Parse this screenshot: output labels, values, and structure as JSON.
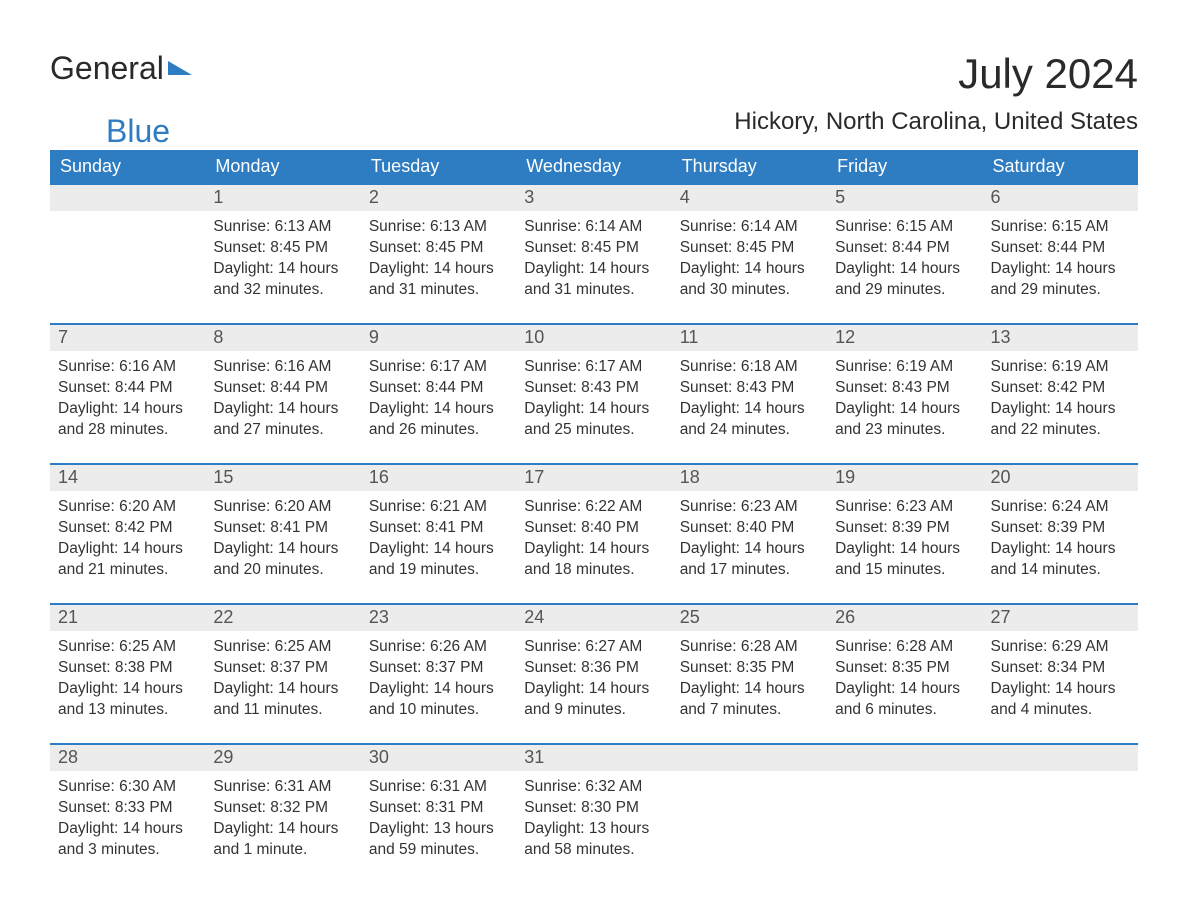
{
  "brand": {
    "general": "General",
    "blue": "Blue"
  },
  "header": {
    "month_title": "July 2024",
    "location": "Hickory, North Carolina, United States"
  },
  "colors": {
    "header_bg": "#2e7cc1",
    "header_text": "#ffffff",
    "daynum_bg": "#ececec",
    "row_top_border": "#2e7cc1",
    "body_text": "#333333",
    "logo_blue": "#2e7cc1",
    "logo_dark": "#2a2a2a",
    "page_bg": "#ffffff"
  },
  "typography": {
    "month_title_fontsize": 42,
    "location_fontsize": 24,
    "th_fontsize": 18,
    "daynum_fontsize": 18,
    "cell_fontsize": 15.5
  },
  "calendar": {
    "columns": [
      "Sunday",
      "Monday",
      "Tuesday",
      "Wednesday",
      "Thursday",
      "Friday",
      "Saturday"
    ],
    "weeks": [
      [
        null,
        {
          "n": "1",
          "sunrise": "6:13 AM",
          "sunset": "8:45 PM",
          "daylight": "14 hours and 32 minutes."
        },
        {
          "n": "2",
          "sunrise": "6:13 AM",
          "sunset": "8:45 PM",
          "daylight": "14 hours and 31 minutes."
        },
        {
          "n": "3",
          "sunrise": "6:14 AM",
          "sunset": "8:45 PM",
          "daylight": "14 hours and 31 minutes."
        },
        {
          "n": "4",
          "sunrise": "6:14 AM",
          "sunset": "8:45 PM",
          "daylight": "14 hours and 30 minutes."
        },
        {
          "n": "5",
          "sunrise": "6:15 AM",
          "sunset": "8:44 PM",
          "daylight": "14 hours and 29 minutes."
        },
        {
          "n": "6",
          "sunrise": "6:15 AM",
          "sunset": "8:44 PM",
          "daylight": "14 hours and 29 minutes."
        }
      ],
      [
        {
          "n": "7",
          "sunrise": "6:16 AM",
          "sunset": "8:44 PM",
          "daylight": "14 hours and 28 minutes."
        },
        {
          "n": "8",
          "sunrise": "6:16 AM",
          "sunset": "8:44 PM",
          "daylight": "14 hours and 27 minutes."
        },
        {
          "n": "9",
          "sunrise": "6:17 AM",
          "sunset": "8:44 PM",
          "daylight": "14 hours and 26 minutes."
        },
        {
          "n": "10",
          "sunrise": "6:17 AM",
          "sunset": "8:43 PM",
          "daylight": "14 hours and 25 minutes."
        },
        {
          "n": "11",
          "sunrise": "6:18 AM",
          "sunset": "8:43 PM",
          "daylight": "14 hours and 24 minutes."
        },
        {
          "n": "12",
          "sunrise": "6:19 AM",
          "sunset": "8:43 PM",
          "daylight": "14 hours and 23 minutes."
        },
        {
          "n": "13",
          "sunrise": "6:19 AM",
          "sunset": "8:42 PM",
          "daylight": "14 hours and 22 minutes."
        }
      ],
      [
        {
          "n": "14",
          "sunrise": "6:20 AM",
          "sunset": "8:42 PM",
          "daylight": "14 hours and 21 minutes."
        },
        {
          "n": "15",
          "sunrise": "6:20 AM",
          "sunset": "8:41 PM",
          "daylight": "14 hours and 20 minutes."
        },
        {
          "n": "16",
          "sunrise": "6:21 AM",
          "sunset": "8:41 PM",
          "daylight": "14 hours and 19 minutes."
        },
        {
          "n": "17",
          "sunrise": "6:22 AM",
          "sunset": "8:40 PM",
          "daylight": "14 hours and 18 minutes."
        },
        {
          "n": "18",
          "sunrise": "6:23 AM",
          "sunset": "8:40 PM",
          "daylight": "14 hours and 17 minutes."
        },
        {
          "n": "19",
          "sunrise": "6:23 AM",
          "sunset": "8:39 PM",
          "daylight": "14 hours and 15 minutes."
        },
        {
          "n": "20",
          "sunrise": "6:24 AM",
          "sunset": "8:39 PM",
          "daylight": "14 hours and 14 minutes."
        }
      ],
      [
        {
          "n": "21",
          "sunrise": "6:25 AM",
          "sunset": "8:38 PM",
          "daylight": "14 hours and 13 minutes."
        },
        {
          "n": "22",
          "sunrise": "6:25 AM",
          "sunset": "8:37 PM",
          "daylight": "14 hours and 11 minutes."
        },
        {
          "n": "23",
          "sunrise": "6:26 AM",
          "sunset": "8:37 PM",
          "daylight": "14 hours and 10 minutes."
        },
        {
          "n": "24",
          "sunrise": "6:27 AM",
          "sunset": "8:36 PM",
          "daylight": "14 hours and 9 minutes."
        },
        {
          "n": "25",
          "sunrise": "6:28 AM",
          "sunset": "8:35 PM",
          "daylight": "14 hours and 7 minutes."
        },
        {
          "n": "26",
          "sunrise": "6:28 AM",
          "sunset": "8:35 PM",
          "daylight": "14 hours and 6 minutes."
        },
        {
          "n": "27",
          "sunrise": "6:29 AM",
          "sunset": "8:34 PM",
          "daylight": "14 hours and 4 minutes."
        }
      ],
      [
        {
          "n": "28",
          "sunrise": "6:30 AM",
          "sunset": "8:33 PM",
          "daylight": "14 hours and 3 minutes."
        },
        {
          "n": "29",
          "sunrise": "6:31 AM",
          "sunset": "8:32 PM",
          "daylight": "14 hours and 1 minute."
        },
        {
          "n": "30",
          "sunrise": "6:31 AM",
          "sunset": "8:31 PM",
          "daylight": "13 hours and 59 minutes."
        },
        {
          "n": "31",
          "sunrise": "6:32 AM",
          "sunset": "8:30 PM",
          "daylight": "13 hours and 58 minutes."
        },
        null,
        null,
        null
      ]
    ],
    "labels": {
      "sunrise_prefix": "Sunrise: ",
      "sunset_prefix": "Sunset: ",
      "daylight_prefix": "Daylight: "
    }
  }
}
